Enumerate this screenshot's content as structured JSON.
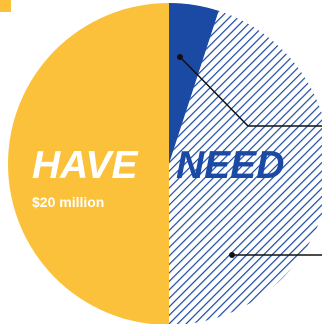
{
  "colors": {
    "have": "#fbc13a",
    "need_solid": "#1a4aa3",
    "need_hatch": "#1a4aa3",
    "hatch_bg": "#ffffff",
    "leader": "#111111"
  },
  "labels": {
    "have": "HAVE",
    "need": "NEED",
    "have_amount": "$20 million"
  },
  "chart_data": {
    "type": "pie",
    "title": "",
    "slices": [
      {
        "value": 0.05,
        "style": "solid",
        "color_key": "need_solid"
      },
      {
        "value": 0.45,
        "style": "hatched",
        "color_key": "need_hatch"
      },
      {
        "value": 0.5,
        "style": "solid",
        "color_key": "have"
      }
    ],
    "annotations": [
      {
        "text": "$20 million",
        "slice_index": 2
      }
    ]
  }
}
